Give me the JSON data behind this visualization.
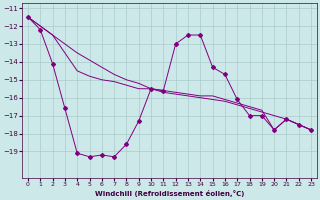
{
  "xlabel": "Windchill (Refroidissement éolien,°C)",
  "background_color": "#cce8e8",
  "grid_color": "#aacccc",
  "line_color": "#800080",
  "x_hours": [
    0,
    1,
    2,
    3,
    4,
    5,
    6,
    7,
    8,
    9,
    10,
    11,
    12,
    13,
    14,
    15,
    16,
    17,
    18,
    19,
    20,
    21,
    22,
    23
  ],
  "series_main": [
    -11.5,
    -12.2,
    -14.1,
    -16.6,
    -19.1,
    -19.3,
    -19.2,
    -19.3,
    -18.6,
    -17.3,
    -15.5,
    -15.6,
    -13.0,
    -12.5,
    -12.5,
    -14.3,
    -14.7,
    -16.1,
    -17.0,
    -17.0,
    -17.8,
    -17.2,
    -17.5,
    -17.8
  ],
  "series_trend1": [
    -11.5,
    -12.0,
    -12.5,
    -13.0,
    -13.5,
    -13.9,
    -14.3,
    -14.7,
    -15.0,
    -15.2,
    -15.5,
    -15.7,
    -15.8,
    -15.9,
    -16.0,
    -16.1,
    -16.2,
    -16.4,
    -16.6,
    -16.8,
    -17.0,
    -17.2,
    -17.5,
    -17.8
  ],
  "series_trend2": [
    -11.5,
    -12.0,
    -12.5,
    -13.5,
    -14.5,
    -14.8,
    -15.0,
    -15.1,
    -15.3,
    -15.5,
    -15.5,
    -15.6,
    -15.7,
    -15.8,
    -15.9,
    -15.9,
    -16.1,
    -16.3,
    -16.5,
    -16.7,
    -17.8,
    -17.2,
    -17.5,
    -17.8
  ],
  "ylim": [
    -20,
    -11
  ],
  "xlim": [
    -0.5,
    23.5
  ],
  "yticks": [
    -19,
    -18,
    -17,
    -16,
    -15,
    -14,
    -13,
    -12,
    -11
  ],
  "xticks": [
    0,
    1,
    2,
    3,
    4,
    5,
    6,
    7,
    8,
    9,
    10,
    11,
    12,
    13,
    14,
    15,
    16,
    17,
    18,
    19,
    20,
    21,
    22,
    23
  ]
}
